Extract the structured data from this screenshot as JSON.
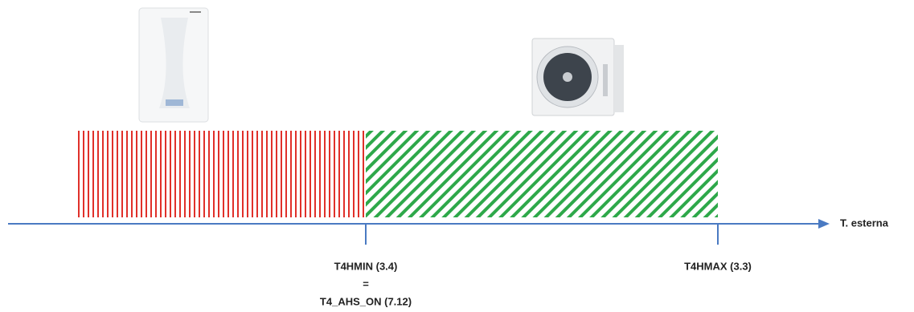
{
  "axis": {
    "label": "T. esterna"
  },
  "markers": [
    {
      "lines": [
        "T4HMIN (3.4)",
        "=",
        "T4_AHS_ON (7.12)"
      ]
    },
    {
      "lines": [
        "T4HMAX (3.3)"
      ]
    }
  ]
}
